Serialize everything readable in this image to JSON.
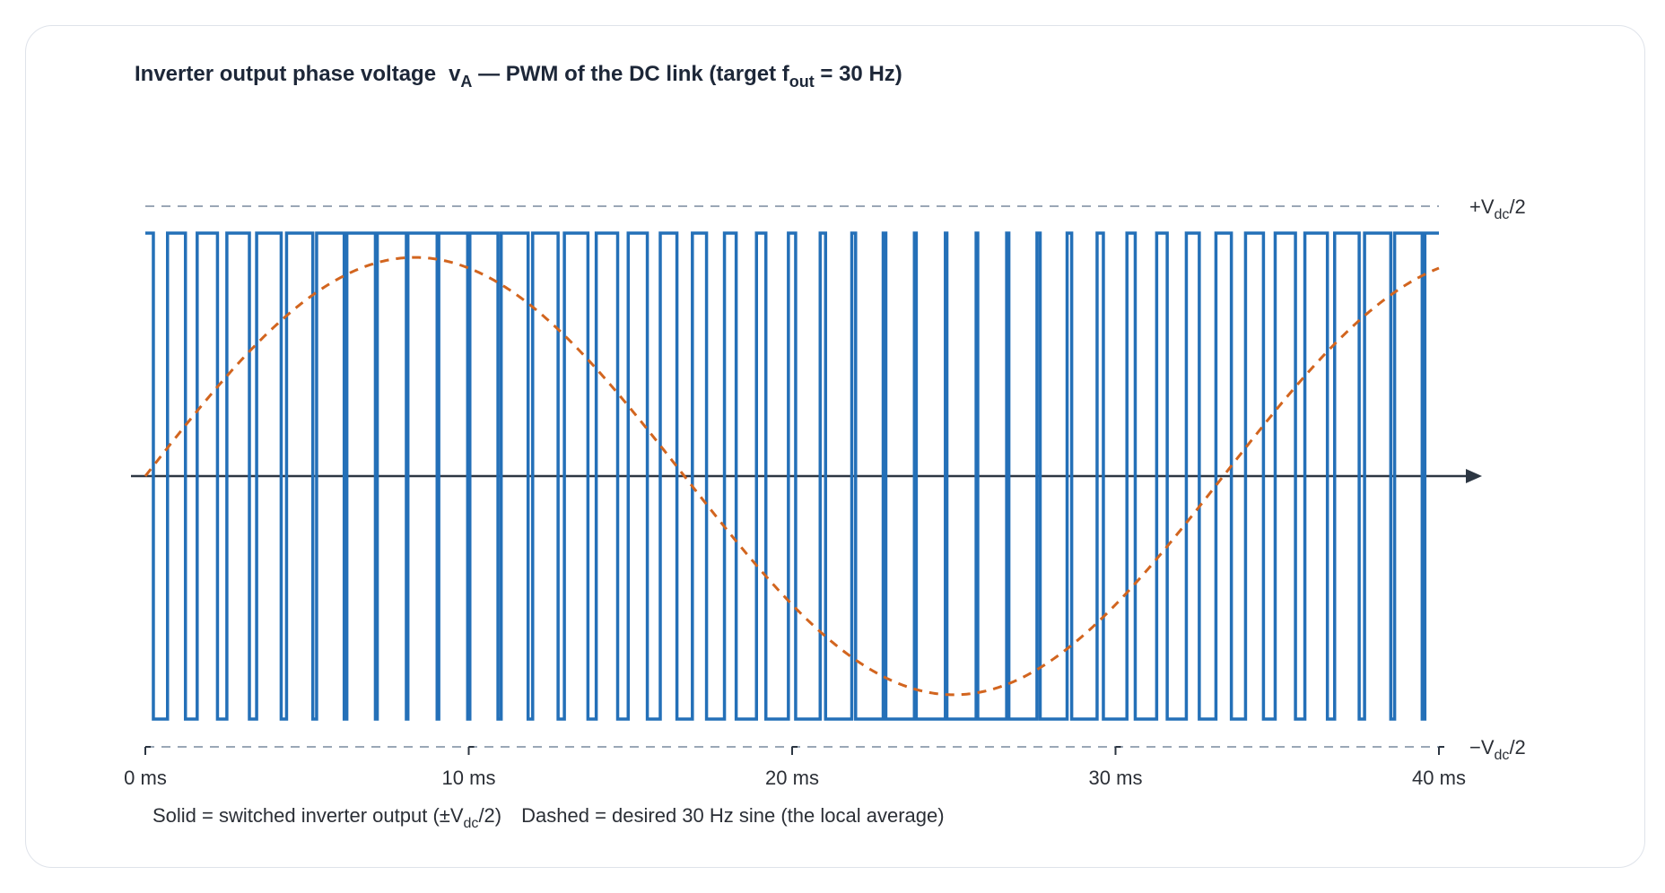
{
  "chart_data": {
    "type": "line",
    "title": {
      "prefix": "Inverter output phase voltage",
      "var": "v",
      "var_sub": "A",
      "middle": " — PWM of the DC link  (target f",
      "f_sub": "out",
      "suffix": " = 30 Hz)"
    },
    "x_ticks": [
      "0 ms",
      "10 ms",
      "20 ms",
      "30 ms",
      "40 ms"
    ],
    "x_unit": "ms",
    "xlim": [
      0,
      40
    ],
    "ylim": [
      -1,
      1
    ],
    "rail_labels": {
      "top": {
        "prefix": "+V",
        "sub": "dc",
        "suffix": "/2"
      },
      "bottom": {
        "prefix": "−V",
        "sub": "dc",
        "suffix": "/2"
      }
    },
    "series": [
      {
        "name": "switched inverter output",
        "style": "solid",
        "color": "#2470b8",
        "levels": {
          "high": 1,
          "low": -1
        },
        "carrier_frequency_hz": 1050
      },
      {
        "name": "desired 30 Hz sine",
        "style": "dashed",
        "color": "#d2651f",
        "frequency_hz": 30,
        "amplitude": 0.9
      }
    ],
    "legend": {
      "solid_prefix": "Solid = switched inverter output (±V",
      "solid_sub": "dc",
      "solid_suffix": "/2)",
      "dashed": "Dashed = desired 30 Hz sine (the local average)"
    }
  }
}
